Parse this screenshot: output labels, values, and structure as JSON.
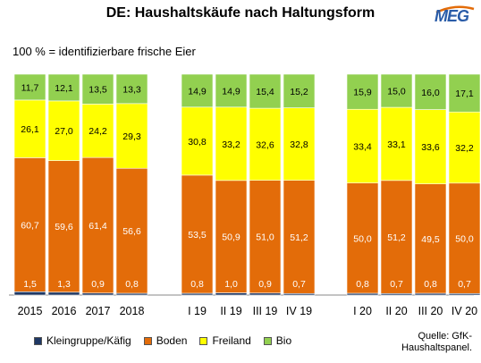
{
  "title": "DE: Haushaltskäufe nach Haltungsform",
  "subtitle": "100 % = identifizierbare frische Eier",
  "logo_text": "MEG",
  "source_lines": [
    "Quelle: GfK-",
    "Haushaltspanel."
  ],
  "legend": [
    {
      "name": "Kleingruppe/Käfig",
      "color": "#1f3864"
    },
    {
      "name": "Boden",
      "color": "#e36c09"
    },
    {
      "name": "Freiland",
      "color": "#ffff00"
    },
    {
      "name": "Bio",
      "color": "#92d050"
    }
  ],
  "chart_data": {
    "type": "bar",
    "stacked": true,
    "categories": [
      "2015",
      "2016",
      "2017",
      "2018",
      "I 19",
      "II 19",
      "III 19",
      "IV 19",
      "I 20",
      "II 20",
      "III 20",
      "IV 20"
    ],
    "groups": [
      [
        0,
        1,
        2,
        3
      ],
      [
        4,
        5,
        6,
        7
      ],
      [
        8,
        9,
        10,
        11
      ]
    ],
    "series": [
      {
        "name": "Kleingruppe/Käfig",
        "color": "#1f3864",
        "values": [
          1.5,
          1.3,
          0.9,
          0.8,
          0.8,
          1.0,
          0.9,
          0.7,
          0.8,
          0.7,
          0.8,
          0.7
        ],
        "labels": [
          "1,5",
          "1,3",
          "0,9",
          "0,8",
          "0,8",
          "1,0",
          "0,9",
          "0,7",
          "0,8",
          "0,7",
          "0,8",
          "0,7"
        ]
      },
      {
        "name": "Boden",
        "color": "#e36c09",
        "values": [
          60.7,
          59.6,
          61.4,
          56.6,
          53.5,
          50.9,
          51.0,
          51.2,
          50.0,
          51.2,
          49.5,
          50.0
        ],
        "labels": [
          "60,7",
          "59,6",
          "61,4",
          "56,6",
          "53,5",
          "50,9",
          "51,0",
          "51,2",
          "50,0",
          "51,2",
          "49,5",
          "50,0"
        ]
      },
      {
        "name": "Freiland",
        "color": "#ffff00",
        "values": [
          26.1,
          27.0,
          24.2,
          29.3,
          30.8,
          33.2,
          32.6,
          32.8,
          33.4,
          33.1,
          33.6,
          32.2
        ],
        "labels": [
          "26,1",
          "27,0",
          "24,2",
          "29,3",
          "30,8",
          "33,2",
          "32,6",
          "32,8",
          "33,4",
          "33,1",
          "33,6",
          "32,2"
        ]
      },
      {
        "name": "Bio",
        "color": "#92d050",
        "values": [
          11.7,
          12.1,
          13.5,
          13.3,
          14.9,
          14.9,
          15.4,
          15.2,
          15.9,
          15.0,
          16.0,
          17.1
        ],
        "labels": [
          "11,7",
          "12,1",
          "13,5",
          "13,3",
          "14,9",
          "14,9",
          "15,4",
          "15,2",
          "15,9",
          "15,0",
          "16,0",
          "17,1"
        ]
      }
    ]
  }
}
